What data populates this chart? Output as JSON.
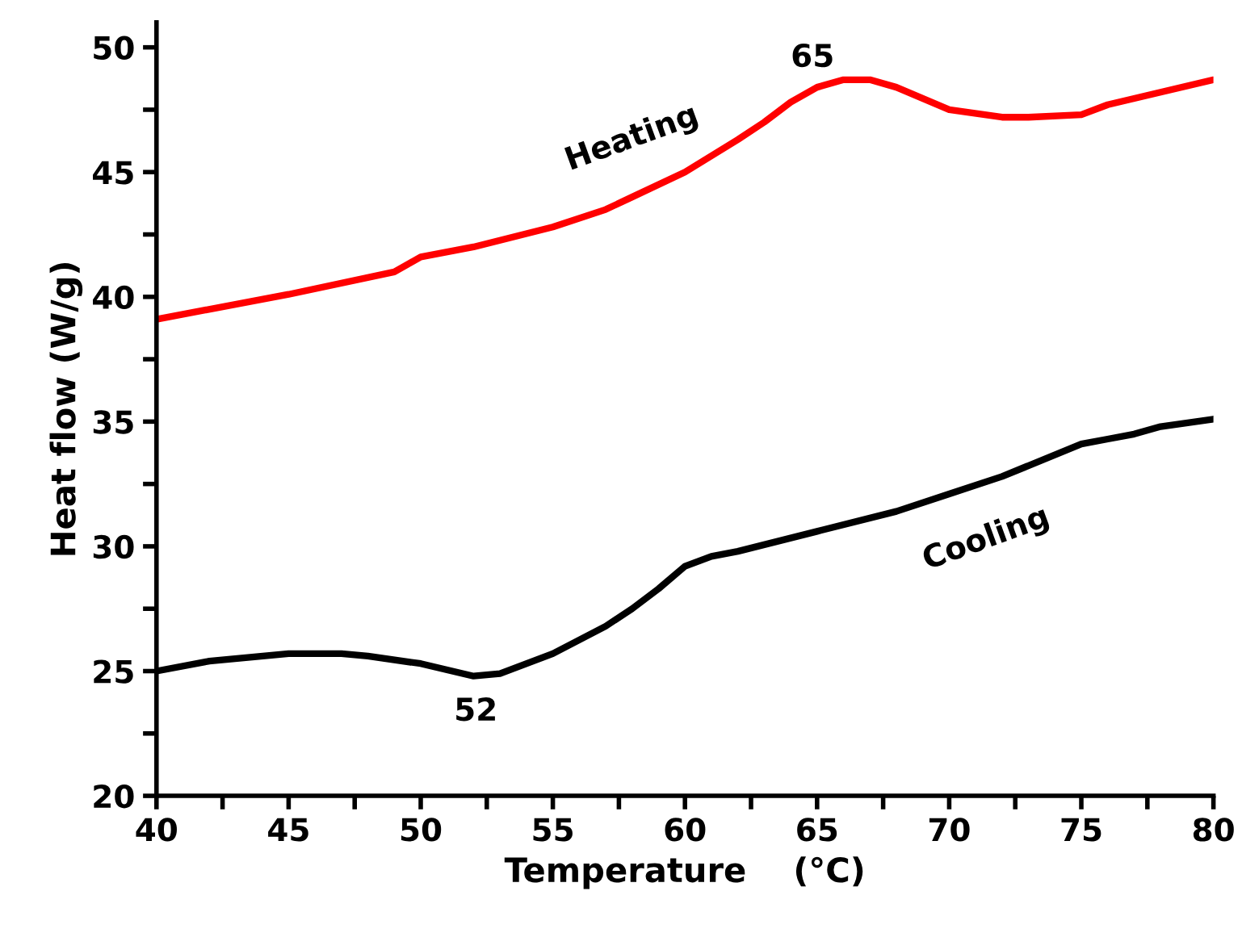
{
  "chart_data": {
    "type": "line",
    "xlabel": "Temperature    (°C)",
    "ylabel": "Heat flow (W/g)",
    "xlim": [
      40,
      80
    ],
    "ylim": [
      20,
      51
    ],
    "xticks": [
      40,
      {
        "value": 42.5,
        "label": null
      },
      45,
      {
        "value": 47.5,
        "label": null
      },
      50,
      {
        "value": 52.5,
        "label": null
      },
      55,
      {
        "value": 57.5,
        "label": null
      },
      60,
      {
        "value": 62.5,
        "label": null
      },
      65,
      {
        "value": 67.5,
        "label": null
      },
      70,
      {
        "value": 72.5,
        "label": null
      },
      75,
      {
        "value": 77.5,
        "label": null
      },
      80
    ],
    "yticks": [
      20,
      {
        "value": 22.5,
        "label": null
      },
      25,
      {
        "value": 27.5,
        "label": null
      },
      30,
      {
        "value": 32.5,
        "label": null
      },
      35,
      {
        "value": 37.5,
        "label": null
      },
      40,
      {
        "value": 42.5,
        "label": null
      },
      45,
      {
        "value": 47.5,
        "label": null
      },
      50
    ],
    "grid": false,
    "series": [
      {
        "color": "#ff0000",
        "x": [
          40,
          45,
          49,
          49.5,
          50,
          52,
          55,
          57,
          58,
          60,
          62,
          63,
          64,
          65,
          66,
          67,
          68,
          70,
          72,
          73,
          75,
          76,
          78,
          80
        ],
        "values": [
          39.1,
          40.1,
          41.0,
          41.3,
          41.6,
          42.0,
          42.8,
          43.5,
          44.0,
          45.0,
          46.3,
          47.0,
          47.8,
          48.4,
          48.7,
          48.7,
          48.4,
          47.5,
          47.2,
          47.2,
          47.3,
          47.7,
          48.2,
          48.7
        ]
      },
      {
        "color": "#000000",
        "x": [
          40,
          42,
          45,
          47,
          48,
          50,
          52,
          53,
          55,
          57,
          58,
          59,
          60,
          61,
          62,
          65,
          68,
          70,
          72,
          75,
          76,
          77,
          78,
          80
        ],
        "values": [
          25.0,
          25.4,
          25.7,
          25.7,
          25.6,
          25.3,
          24.8,
          24.9,
          25.7,
          26.8,
          27.5,
          28.3,
          29.2,
          29.6,
          29.8,
          30.6,
          31.4,
          32.1,
          32.8,
          34.1,
          34.3,
          34.5,
          34.8,
          35.1
        ]
      }
    ],
    "annotations": [
      {
        "text": "Heating",
        "x": 58,
        "y": 44.0
      },
      {
        "text": "65",
        "x": 65,
        "y": 48.4
      },
      {
        "text": "Cooling",
        "x": 72,
        "y": 32.8
      },
      {
        "text": "52",
        "x": 52,
        "y": 24.8
      }
    ]
  }
}
